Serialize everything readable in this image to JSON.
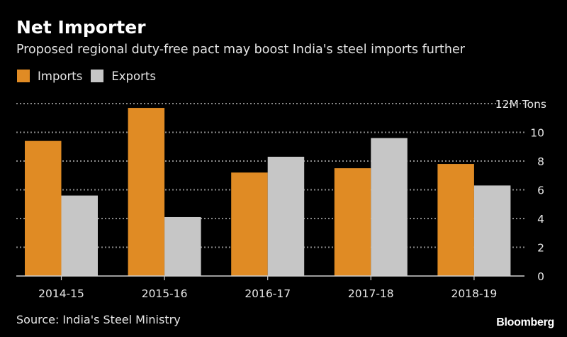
{
  "header": {
    "title": "Net Importer",
    "subtitle": "Proposed regional duty-free pact may boost India's steel imports further"
  },
  "legend": [
    {
      "label": "Imports",
      "color": "#e08b24"
    },
    {
      "label": "Exports",
      "color": "#c6c6c6"
    }
  ],
  "footer": {
    "source": "Source: India's Steel Ministry",
    "logo": "Bloomberg"
  },
  "chart_data": {
    "type": "bar",
    "title": "Net Importer",
    "subtitle": "Proposed regional duty-free pact may boost India's steel imports further",
    "xlabel": "",
    "ylabel": "",
    "unit_label": "12M Tons",
    "categories": [
      "2014-15",
      "2015-16",
      "2016-17",
      "2017-18",
      "2018-19"
    ],
    "series": [
      {
        "name": "Imports",
        "color": "#e08b24",
        "values": [
          9.4,
          11.7,
          7.2,
          7.5,
          7.8
        ]
      },
      {
        "name": "Exports",
        "color": "#c6c6c6",
        "values": [
          5.6,
          4.1,
          8.3,
          9.6,
          6.3
        ]
      }
    ],
    "ylim": [
      0,
      12
    ],
    "yticks": [
      0,
      2,
      4,
      6,
      8,
      10,
      12
    ],
    "ytick_labels": [
      "0",
      "2",
      "4",
      "6",
      "8",
      "10",
      "12M Tons"
    ],
    "y_axis_position": "right",
    "grid": true,
    "legend_position": "top-left"
  }
}
